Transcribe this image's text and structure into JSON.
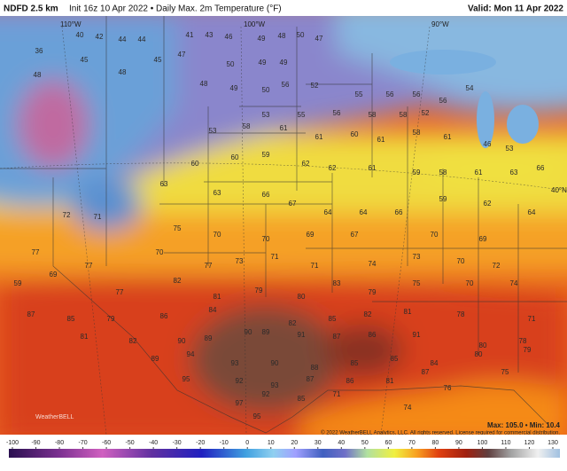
{
  "header": {
    "model": "NDFD 2.5 km",
    "title": "Init 16z 10 Apr 2022 • Daily Max. 2m Temperature (°F)",
    "valid": "Valid: Mon 11 Apr 2022"
  },
  "grid_labels": [
    "110°W",
    "100°W",
    "90°W",
    "40°N"
  ],
  "stations": [
    36,
    40,
    42,
    44,
    44,
    41,
    43,
    46,
    49,
    48,
    50,
    47,
    47,
    50,
    49,
    49,
    45,
    45,
    48,
    48,
    48,
    49,
    50,
    56,
    52,
    55,
    56,
    56,
    56,
    54,
    53,
    55,
    56,
    58,
    58,
    52,
    53,
    58,
    61,
    61,
    60,
    61,
    58,
    61,
    46,
    53,
    66,
    60,
    60,
    59,
    62,
    62,
    61,
    59,
    58,
    61,
    63,
    63,
    63,
    66,
    67,
    64,
    64,
    66,
    59,
    62,
    72,
    71,
    75,
    70,
    70,
    69,
    67,
    70,
    69,
    64,
    77,
    77,
    70,
    77,
    73,
    71,
    71,
    74,
    73,
    70,
    72,
    59,
    69,
    77,
    82,
    81,
    79,
    80,
    83,
    79,
    75,
    70,
    74,
    87,
    85,
    79,
    86,
    84,
    90,
    82,
    85,
    82,
    81,
    78,
    71,
    81,
    82,
    90,
    89,
    89,
    91,
    87,
    86,
    91,
    80,
    78,
    89,
    94,
    93,
    90,
    88,
    85,
    85,
    84,
    80,
    79,
    95,
    92,
    93,
    87,
    86,
    81,
    87,
    75,
    97,
    92,
    85,
    71,
    74,
    76,
    95
  ],
  "colorbar": {
    "ticks": [
      -100,
      -90,
      -80,
      -70,
      -60,
      -50,
      -40,
      -30,
      -20,
      -10,
      0,
      10,
      20,
      30,
      40,
      50,
      60,
      70,
      80,
      90,
      100,
      110,
      120,
      130
    ]
  },
  "footer": {
    "copyright": "© 2022 WeatherBELL Analytics, LLC. All rights reserved. License required for commercial distribution.",
    "stats": "Max: 105.0 • Min: 10.4",
    "logo": "WeatherBELL"
  }
}
